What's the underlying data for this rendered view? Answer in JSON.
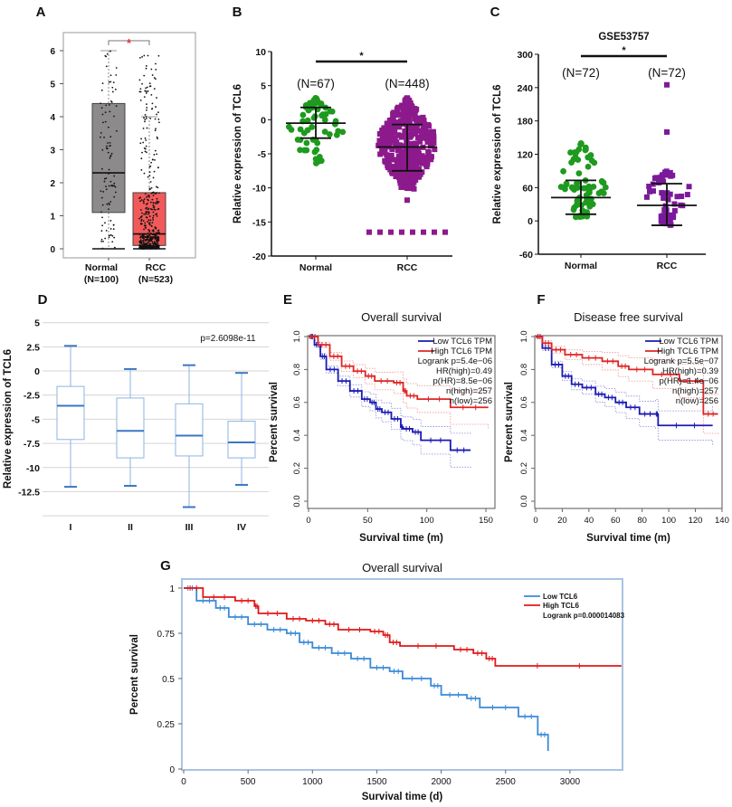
{
  "chart_data": [
    {
      "panel_label": "A",
      "type": "box",
      "categories": [
        "Normal",
        "RCC"
      ],
      "n_labels": [
        "(N=100)",
        "(N=523)"
      ],
      "yticks": [
        "0",
        "1",
        "2",
        "3",
        "4",
        "5",
        "6"
      ],
      "ylim": [
        -0.2,
        6.5
      ],
      "significance": "*",
      "jittered_points": true,
      "boxes": [
        {
          "q1": 1.1,
          "median": 2.3,
          "q3": 4.4,
          "whisker_low": 0,
          "whisker_high": 6,
          "n": 100,
          "color": "#8c8a8a"
        },
        {
          "q1": 0.1,
          "median": 0.45,
          "q3": 1.7,
          "whisker_low": 0,
          "whisker_high": 4,
          "n": 523,
          "color": "#f25a5a"
        }
      ]
    },
    {
      "panel_label": "B",
      "type": "scatter",
      "ylabel": "Relative expression of TCL6",
      "categories": [
        "Normal",
        "RCC"
      ],
      "n_labels": [
        "(N=67)",
        "(N=448)"
      ],
      "yticks": [
        "10",
        "5",
        "0",
        "-5",
        "-10",
        "-15",
        "-20"
      ],
      "ylim": [
        -20,
        10
      ],
      "significance": "*",
      "groups": [
        {
          "mean": -0.5,
          "sd_upper": 1.8,
          "sd_lower": -2.7,
          "min": -6.6,
          "max": 3.2,
          "n": 67,
          "color": "#1e9a1e",
          "marker": "circle"
        },
        {
          "mean": -4.0,
          "sd_upper": -0.7,
          "sd_lower": -7.5,
          "min": -10.2,
          "max": 3.2,
          "n": 448,
          "color": "#8c1a8c",
          "marker": "square",
          "outliers": [
            -11.8
          ],
          "floor_value": -16.5,
          "floor_count": 8
        }
      ]
    },
    {
      "panel_label": "C",
      "type": "scatter",
      "title": "GSE53757",
      "ylabel": "Relative expression of TCL6",
      "categories": [
        "Normal",
        "RCC"
      ],
      "n_labels": [
        "(N=72)",
        "(N=72)"
      ],
      "yticks": [
        "300",
        "240",
        "180",
        "120",
        "60",
        "0",
        "-60"
      ],
      "ylim": [
        -60,
        300
      ],
      "significance": "*",
      "groups": [
        {
          "mean": 42,
          "sd_upper": 73,
          "sd_lower": 12,
          "min": 7,
          "max": 140,
          "n": 72,
          "color": "#1e9a1e",
          "marker": "circle"
        },
        {
          "mean": 28,
          "sd_upper": 67,
          "sd_lower": -8,
          "min": 10,
          "max": 90,
          "n": 72,
          "color": "#7a1a9a",
          "marker": "square",
          "outliers": [
            245,
            160
          ]
        }
      ]
    },
    {
      "panel_label": "D",
      "type": "box",
      "ylabel": "Relative expression of TCL6",
      "categories": [
        "I",
        "II",
        "III",
        "IV"
      ],
      "yticks": [
        "5",
        "2.5",
        "0",
        "-2.5",
        "-5",
        "-7.5",
        "-10",
        "-12.5"
      ],
      "ylim": [
        -15,
        5
      ],
      "grid": true,
      "annotation": "p=2.6098e-11",
      "color": "#3a78c0",
      "boxes": [
        {
          "whisker_high": 2.6,
          "q3": -1.6,
          "median": -3.6,
          "q1": -7.1,
          "whisker_low": -12.0
        },
        {
          "whisker_high": 0.2,
          "q3": -2.8,
          "median": -6.2,
          "q1": -9.0,
          "whisker_low": -11.9
        },
        {
          "whisker_high": 0.6,
          "q3": -3.4,
          "median": -6.7,
          "q1": -8.8,
          "whisker_low": -14.1
        },
        {
          "whisker_high": -0.2,
          "q3": -5.2,
          "median": -7.4,
          "q1": -9.0,
          "whisker_low": -11.8
        }
      ]
    },
    {
      "panel_label": "E",
      "type": "line",
      "title": "Overall survival",
      "xlabel": "Survival time (m)",
      "ylabel": "Percent survival",
      "xticks": [
        "0",
        "50",
        "100",
        "150"
      ],
      "yticks": [
        "0.0",
        "0.2",
        "0.4",
        "0.6",
        "0.8",
        "1.0"
      ],
      "xlim": [
        0,
        155
      ],
      "ylim": [
        0,
        1
      ],
      "confidence_bands": true,
      "legend": [
        "Low TCL6 TPM",
        "High TCL6 TPM"
      ],
      "stats": [
        "Logrank p=5.4e−06",
        "HR(high)=0.49",
        "p(HR)=8.5e−06",
        "n(high)=257",
        "n(low)=256"
      ],
      "series": [
        {
          "name": "Low TCL6 TPM",
          "color": "#1a1ab4",
          "points": [
            [
              0,
              1
            ],
            [
              5,
              0.95
            ],
            [
              10,
              0.88
            ],
            [
              15,
              0.8
            ],
            [
              25,
              0.73
            ],
            [
              35,
              0.67
            ],
            [
              45,
              0.62
            ],
            [
              52,
              0.6
            ],
            [
              57,
              0.56
            ],
            [
              62,
              0.54
            ],
            [
              70,
              0.5
            ],
            [
              78,
              0.45
            ],
            [
              80,
              0.44
            ],
            [
              88,
              0.42
            ],
            [
              95,
              0.37
            ],
            [
              120,
              0.31
            ],
            [
              137,
              0.31
            ]
          ]
        },
        {
          "name": "High TCL6 TPM",
          "color": "#e02424",
          "points": [
            [
              0,
              1
            ],
            [
              8,
              0.95
            ],
            [
              18,
              0.88
            ],
            [
              28,
              0.82
            ],
            [
              38,
              0.79
            ],
            [
              48,
              0.76
            ],
            [
              56,
              0.73
            ],
            [
              72,
              0.72
            ],
            [
              80,
              0.67
            ],
            [
              83,
              0.64
            ],
            [
              92,
              0.62
            ],
            [
              120,
              0.57
            ],
            [
              152,
              0.57
            ]
          ]
        }
      ]
    },
    {
      "panel_label": "F",
      "type": "line",
      "title": "Disease free survival",
      "xlabel": "Survival time (m)",
      "ylabel": "Percent survival",
      "xticks": [
        "0",
        "20",
        "40",
        "60",
        "80",
        "100",
        "120",
        "140"
      ],
      "yticks": [
        "0.0",
        "0.2",
        "0.4",
        "0.6",
        "0.8",
        "1.0"
      ],
      "xlim": [
        0,
        140
      ],
      "ylim": [
        0,
        1
      ],
      "confidence_bands": true,
      "legend": [
        "Low TCL6 TPM",
        "High TCL6 TPM"
      ],
      "stats": [
        "Logrank p=5.5e−07",
        "HR(high)=0.39",
        "p(HR)=1.4e−06",
        "n(high)=257",
        "n(low)=256"
      ],
      "series": [
        {
          "name": "Low TCL6 TPM",
          "color": "#1a1ab4",
          "points": [
            [
              0,
              1
            ],
            [
              5,
              0.93
            ],
            [
              12,
              0.83
            ],
            [
              20,
              0.76
            ],
            [
              27,
              0.71
            ],
            [
              35,
              0.69
            ],
            [
              45,
              0.65
            ],
            [
              52,
              0.63
            ],
            [
              60,
              0.6
            ],
            [
              68,
              0.57
            ],
            [
              78,
              0.53
            ],
            [
              90,
              0.53
            ],
            [
              92,
              0.46
            ],
            [
              133,
              0.46
            ]
          ]
        },
        {
          "name": "High TCL6 TPM",
          "color": "#e02424",
          "points": [
            [
              0,
              1
            ],
            [
              5,
              0.96
            ],
            [
              12,
              0.92
            ],
            [
              22,
              0.89
            ],
            [
              35,
              0.87
            ],
            [
              50,
              0.85
            ],
            [
              62,
              0.82
            ],
            [
              70,
              0.8
            ],
            [
              88,
              0.77
            ],
            [
              108,
              0.73
            ],
            [
              126,
              0.53
            ],
            [
              137,
              0.53
            ]
          ]
        }
      ]
    },
    {
      "panel_label": "G",
      "type": "line",
      "title": "Overall survival",
      "xlabel": "Survival time (d)",
      "ylabel": "Percent survival",
      "xticks": [
        "0",
        "500",
        "1000",
        "1500",
        "2000",
        "2500",
        "3000"
      ],
      "yticks": [
        "0",
        "0.25",
        "0.5",
        "0.75",
        "1"
      ],
      "xlim": [
        0,
        3410
      ],
      "ylim": [
        0,
        1
      ],
      "legend": [
        "Low TCL6",
        "High TCL6"
      ],
      "stats": [
        "Logrank p=0.000014083"
      ],
      "series": [
        {
          "name": "Low TCL6",
          "color": "#3a8ad8",
          "points": [
            [
              0,
              1
            ],
            [
              100,
              0.93
            ],
            [
              250,
              0.89
            ],
            [
              350,
              0.84
            ],
            [
              500,
              0.8
            ],
            [
              650,
              0.77
            ],
            [
              800,
              0.75
            ],
            [
              900,
              0.7
            ],
            [
              1000,
              0.67
            ],
            [
              1150,
              0.64
            ],
            [
              1300,
              0.61
            ],
            [
              1450,
              0.56
            ],
            [
              1600,
              0.54
            ],
            [
              1700,
              0.5
            ],
            [
              1920,
              0.46
            ],
            [
              2000,
              0.41
            ],
            [
              2200,
              0.39
            ],
            [
              2300,
              0.34
            ],
            [
              2600,
              0.29
            ],
            [
              2750,
              0.19
            ],
            [
              2830,
              0.1
            ]
          ]
        },
        {
          "name": "High TCL6",
          "color": "#e01818",
          "points": [
            [
              0,
              1
            ],
            [
              150,
              0.95
            ],
            [
              400,
              0.93
            ],
            [
              550,
              0.9
            ],
            [
              580,
              0.86
            ],
            [
              800,
              0.83
            ],
            [
              950,
              0.82
            ],
            [
              1100,
              0.8
            ],
            [
              1200,
              0.77
            ],
            [
              1450,
              0.76
            ],
            [
              1550,
              0.74
            ],
            [
              1600,
              0.7
            ],
            [
              1680,
              0.68
            ],
            [
              2100,
              0.66
            ],
            [
              2250,
              0.64
            ],
            [
              2350,
              0.61
            ],
            [
              2420,
              0.57
            ],
            [
              3400,
              0.57
            ]
          ]
        }
      ]
    }
  ]
}
